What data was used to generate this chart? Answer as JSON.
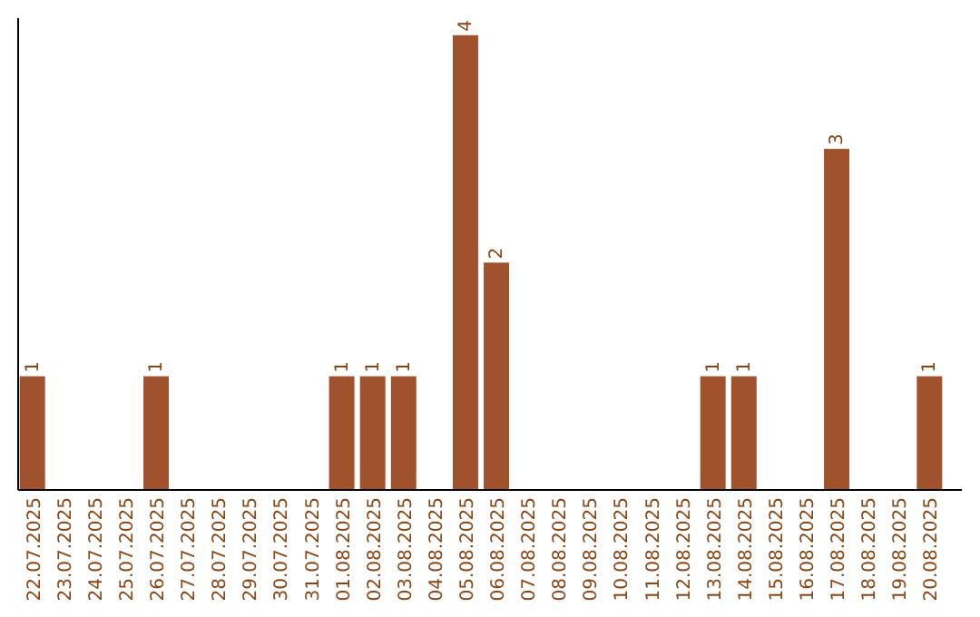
{
  "chart_data": {
    "type": "bar",
    "categories": [
      "22.07.2025",
      "23.07.2025",
      "24.07.2025",
      "25.07.2025",
      "26.07.2025",
      "27.07.2025",
      "28.07.2025",
      "29.07.2025",
      "30.07.2025",
      "31.07.2025",
      "01.08.2025",
      "02.08.2025",
      "03.08.2025",
      "04.08.2025",
      "05.08.2025",
      "06.08.2025",
      "07.08.2025",
      "08.08.2025",
      "09.08.2025",
      "10.08.2025",
      "11.08.2025",
      "12.08.2025",
      "13.08.2025",
      "14.08.2025",
      "15.08.2025",
      "16.08.2025",
      "17.08.2025",
      "18.08.2025",
      "19.08.2025",
      "20.08.2025"
    ],
    "values": [
      1,
      null,
      null,
      null,
      1,
      null,
      null,
      null,
      null,
      null,
      1,
      1,
      1,
      null,
      4,
      2,
      null,
      null,
      null,
      null,
      null,
      null,
      1,
      1,
      null,
      null,
      3,
      null,
      null,
      1
    ],
    "color": "#a0522d",
    "ylim": [
      0,
      4.15
    ],
    "data_labels": true,
    "tick_labels": "x"
  }
}
